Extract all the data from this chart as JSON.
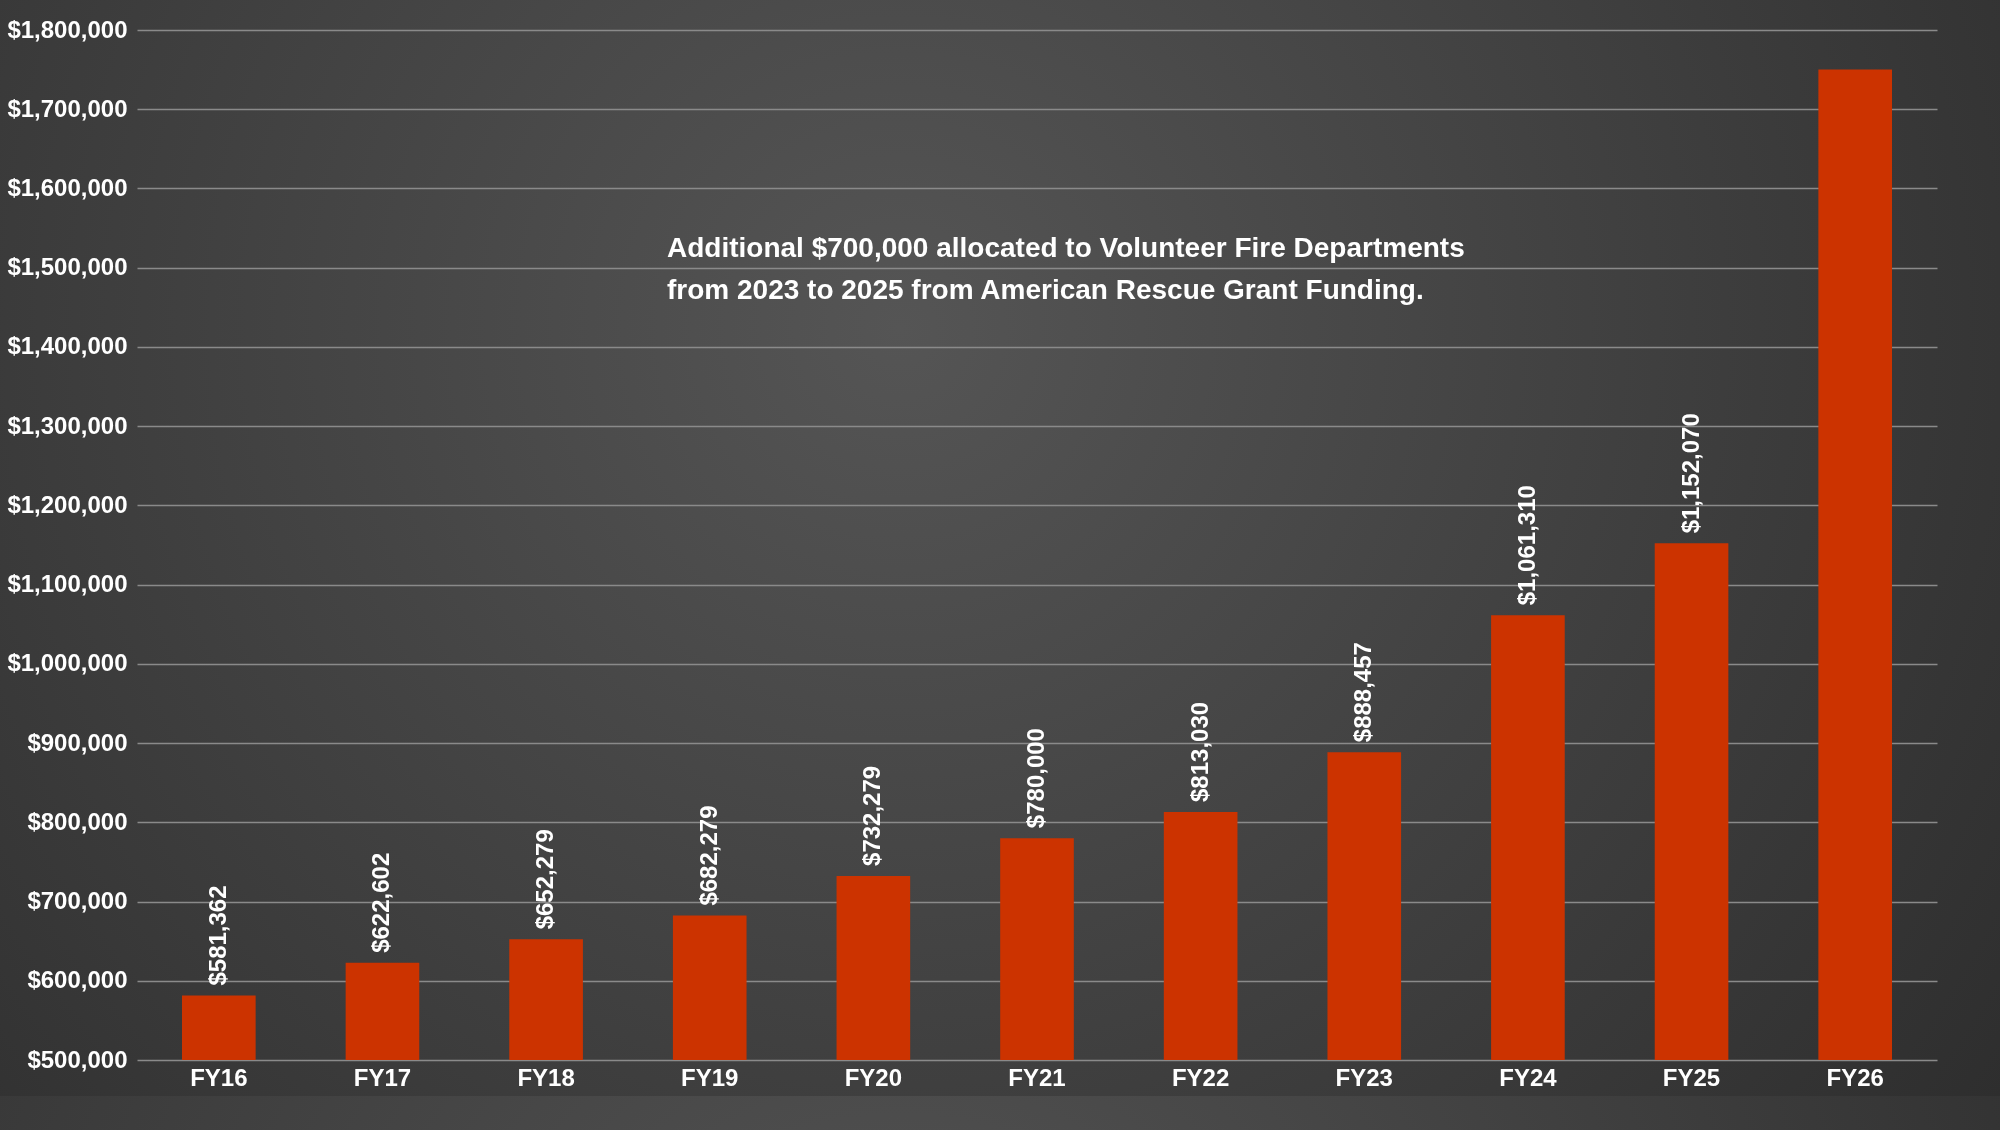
{
  "chart_data": {
    "type": "bar",
    "categories": [
      "FY16",
      "FY17",
      "FY18",
      "FY19",
      "FY20",
      "FY21",
      "FY22",
      "FY23",
      "FY24",
      "FY25",
      "FY26"
    ],
    "values": [
      581362,
      622602,
      652279,
      682279,
      732279,
      780000,
      813030,
      888457,
      1061310,
      1152070,
      1750000
    ],
    "value_labels": [
      "$581,362",
      "$622,602",
      "$652,279",
      "$682,279",
      "$732,279",
      "$780,000",
      "$813,030",
      "$888,457",
      "$1,061,310",
      "$1,152,070",
      null
    ],
    "color": "#cc3300",
    "ylim": [
      500000,
      1800000
    ],
    "yticks": [
      {
        "value": 500000,
        "label": "$500,000"
      },
      {
        "value": 600000,
        "label": "$600,000"
      },
      {
        "value": 700000,
        "label": "$700,000"
      },
      {
        "value": 800000,
        "label": "$800,000"
      },
      {
        "value": 900000,
        "label": "$900,000"
      },
      {
        "value": 1000000,
        "label": "$1,000,000"
      },
      {
        "value": 1100000,
        "label": "$1,100,000"
      },
      {
        "value": 1200000,
        "label": "$1,200,000"
      },
      {
        "value": 1300000,
        "label": "$1,300,000"
      },
      {
        "value": 1400000,
        "label": "$1,400,000"
      },
      {
        "value": 1500000,
        "label": "$1,500,000"
      },
      {
        "value": 1600000,
        "label": "$1,600,000"
      },
      {
        "value": 1700000,
        "label": "$1,700,000"
      },
      {
        "value": 1800000,
        "label": "$1,800,000"
      }
    ],
    "grid": "y",
    "annotations": [
      "Additional $700,000 allocated to Volunteer Fire Departments",
      "from 2023 to 2025 from American Rescue Grant Funding."
    ]
  }
}
